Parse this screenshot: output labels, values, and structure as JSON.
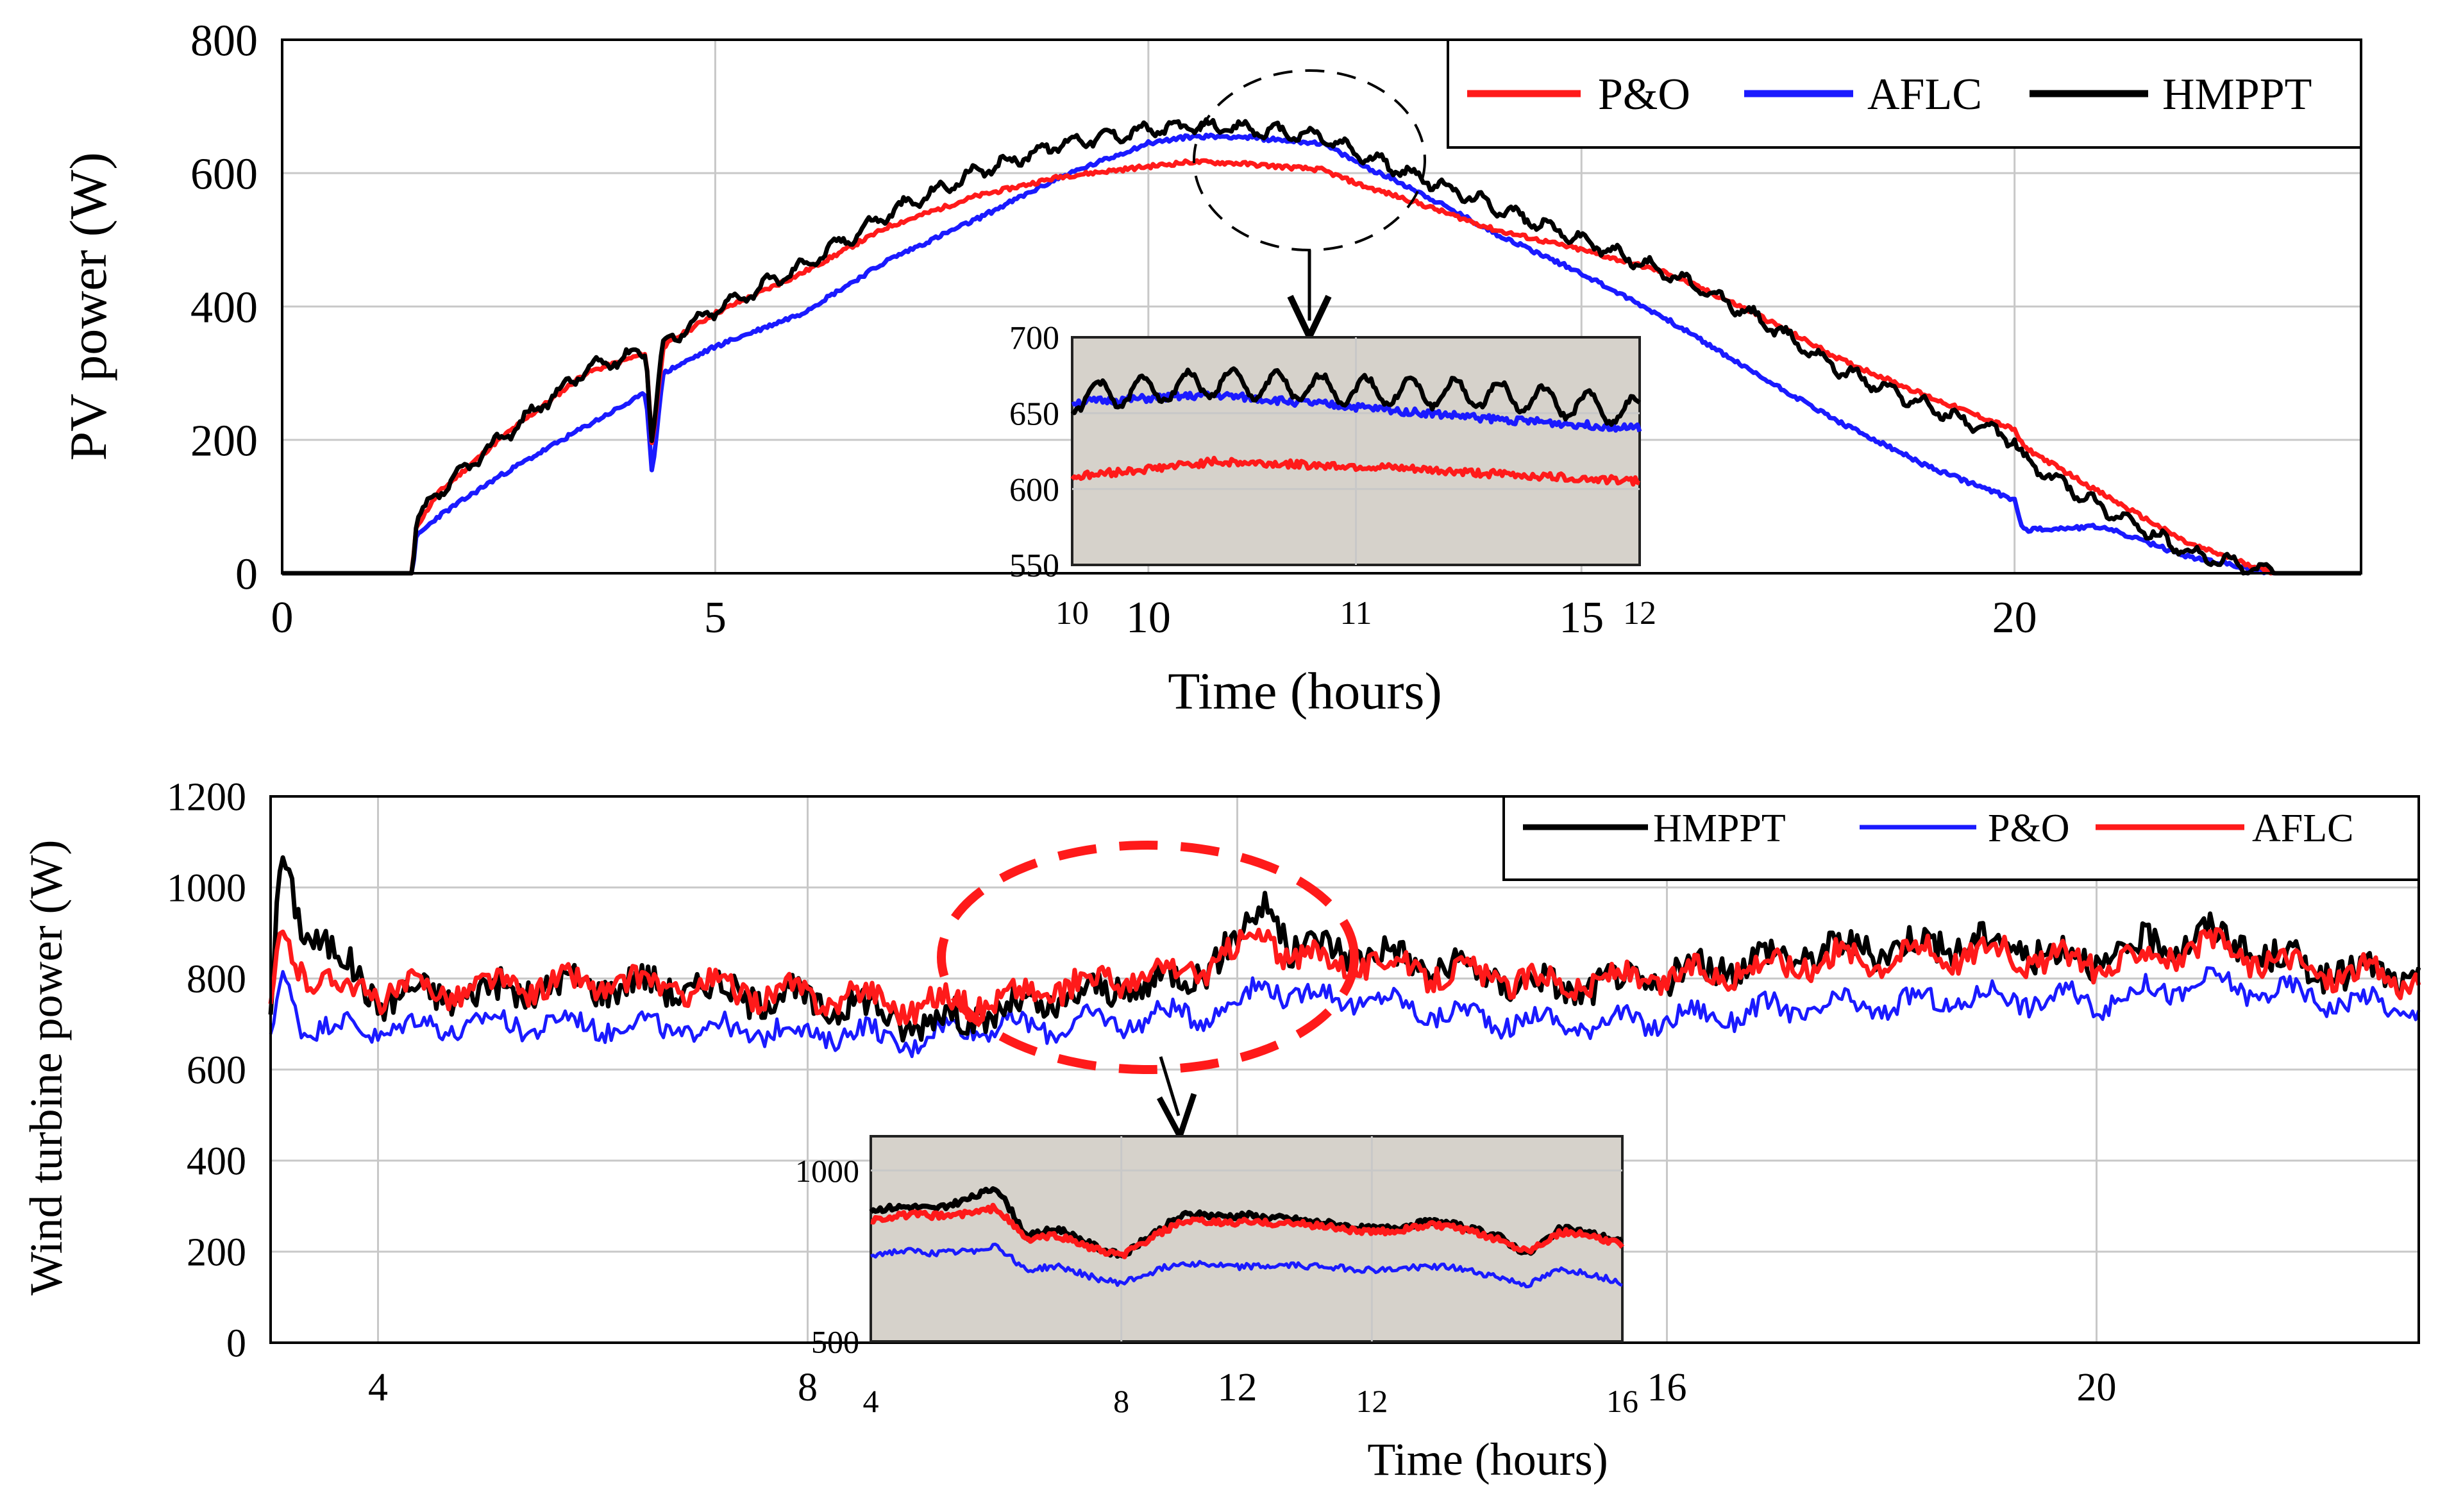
{
  "chart_data": [
    {
      "type": "line",
      "ylabel": "PV power (W)",
      "xlabel": "Time (hours)",
      "xlim": [
        0,
        24
      ],
      "ylim": [
        0,
        800
      ],
      "xticks": [
        "0",
        "5",
        "10",
        "15",
        "20"
      ],
      "yticks": [
        "0",
        "200",
        "400",
        "600",
        "800"
      ],
      "grid": true,
      "legend_position": "top-right",
      "series": [
        {
          "name": "P&O",
          "color": "#ff1a1a",
          "x": [
            0,
            1.5,
            1.55,
            1.8,
            2.5,
            3.5,
            4.2,
            4.27,
            4.4,
            5,
            6,
            7,
            8,
            9,
            10,
            10.5,
            11,
            12,
            12.5,
            13,
            14,
            15,
            16,
            17,
            18,
            19,
            20,
            20.1,
            21,
            22,
            23,
            24
          ],
          "y": [
            0,
            0,
            70,
            120,
            200,
            300,
            330,
            190,
            340,
            390,
            450,
            520,
            565,
            595,
            610,
            617,
            615,
            605,
            580,
            560,
            515,
            485,
            450,
            390,
            320,
            265,
            215,
            190,
            120,
            45,
            0,
            0
          ]
        },
        {
          "name": "AFLC",
          "color": "#1a1aff",
          "x": [
            0,
            1.5,
            1.55,
            1.8,
            2.5,
            3.5,
            4.2,
            4.27,
            4.4,
            5,
            6,
            7,
            8,
            9,
            10,
            10.5,
            11,
            12,
            12.5,
            13,
            14,
            15,
            16,
            17,
            18,
            19,
            20,
            20.1,
            21,
            22,
            23,
            24
          ],
          "y": [
            0,
            0,
            55,
            85,
            145,
            220,
            270,
            150,
            300,
            340,
            390,
            470,
            530,
            595,
            645,
            655,
            655,
            645,
            610,
            580,
            510,
            450,
            380,
            300,
            225,
            160,
            110,
            65,
            70,
            25,
            0,
            0
          ]
        },
        {
          "name": "HMPPT",
          "color": "#000000",
          "x": [
            0,
            1.5,
            1.55,
            1.8,
            2.5,
            3.5,
            4.2,
            4.27,
            4.4,
            5,
            6,
            7,
            8,
            9,
            10,
            10.5,
            11,
            12,
            12.5,
            13,
            14,
            15,
            16,
            17,
            18,
            19,
            20,
            20.1,
            21,
            22,
            23,
            24
          ],
          "y": [
            0,
            0,
            75,
            120,
            200,
            305,
            335,
            200,
            345,
            395,
            460,
            540,
            600,
            645,
            665,
            670,
            668,
            655,
            625,
            600,
            550,
            500,
            450,
            385,
            305,
            250,
            200,
            170,
            100,
            30,
            0,
            0
          ]
        }
      ],
      "inset": {
        "xlim": [
          10,
          12
        ],
        "ylim": [
          550,
          700
        ],
        "xticks": [
          "10",
          "11",
          "12"
        ],
        "yticks": [
          "550",
          "600",
          "650",
          "700"
        ],
        "series": [
          {
            "name": "P&O",
            "x": [
              10,
              10.5,
              11,
              11.5,
              12
            ],
            "y": [
              608,
              618,
              615,
              610,
              605
            ]
          },
          {
            "name": "AFLC",
            "x": [
              10,
              10.5,
              11,
              11.5,
              12
            ],
            "y": [
              657,
              662,
              654,
              646,
              640
            ]
          },
          {
            "name": "HMPPT",
            "x": [
              10,
              10.5,
              11,
              11.5,
              12
            ],
            "y": [
              660,
              670,
              665,
              662,
              650
            ]
          }
        ]
      }
    },
    {
      "type": "line",
      "ylabel": "Wind turbine power (W)",
      "xlabel": "Time (hours)",
      "xlim": [
        3,
        23
      ],
      "ylim": [
        0,
        1200
      ],
      "xticks": [
        "4",
        "8",
        "12",
        "16",
        "20"
      ],
      "yticks": [
        "0",
        "200",
        "400",
        "600",
        "800",
        "1000",
        "1200"
      ],
      "grid": true,
      "legend_position": "top-right",
      "series": [
        {
          "name": "HMPPT",
          "color": "#000000",
          "x": [
            3,
            3.1,
            3.3,
            3.6,
            4,
            5,
            6,
            7,
            8,
            8.5,
            9,
            9.5,
            10,
            10.5,
            11,
            11.5,
            12,
            12.3,
            12.5,
            13,
            14,
            15,
            16,
            17,
            18,
            19,
            20,
            21,
            22,
            23
          ],
          "y": [
            720,
            1080,
            920,
            850,
            760,
            770,
            790,
            780,
            750,
            740,
            700,
            720,
            730,
            760,
            780,
            800,
            880,
            980,
            860,
            870,
            820,
            780,
            800,
            850,
            870,
            880,
            840,
            900,
            820,
            800
          ]
        },
        {
          "name": "P&O",
          "color": "#1a1aff",
          "x": [
            3,
            3.1,
            3.3,
            3.6,
            4,
            5,
            6,
            7,
            8,
            8.5,
            9,
            9.5,
            10,
            10.5,
            11,
            11.5,
            12,
            12.3,
            12.5,
            13,
            14,
            15,
            16,
            17,
            18,
            19,
            20,
            21,
            22,
            23
          ],
          "y": [
            640,
            820,
            700,
            690,
            690,
            700,
            700,
            690,
            680,
            680,
            660,
            700,
            690,
            700,
            710,
            720,
            740,
            800,
            760,
            760,
            720,
            700,
            710,
            730,
            740,
            760,
            750,
            790,
            760,
            730
          ]
        },
        {
          "name": "AFLC",
          "color": "#ff1a1a",
          "x": [
            3,
            3.1,
            3.3,
            3.6,
            4,
            5,
            6,
            7,
            8,
            8.5,
            9,
            9.5,
            10,
            10.5,
            11,
            11.5,
            12,
            12.3,
            12.5,
            13,
            14,
            15,
            16,
            17,
            18,
            19,
            20,
            21,
            22,
            23
          ],
          "y": [
            720,
            900,
            820,
            780,
            770,
            780,
            790,
            780,
            760,
            760,
            740,
            750,
            760,
            790,
            800,
            810,
            860,
            900,
            840,
            840,
            810,
            790,
            800,
            830,
            850,
            860,
            830,
            870,
            820,
            800
          ]
        }
      ],
      "inset": {
        "xlim": [
          4,
          16
        ],
        "ylim": [
          500,
          1100
        ],
        "xticks": [
          "4",
          "8",
          "12",
          "16"
        ],
        "yticks": [
          "500",
          "1000"
        ],
        "series": [
          {
            "name": "HMPPT",
            "x": [
              4,
              5,
              6,
              6.5,
              7,
              8,
              9,
              10,
              11,
              12,
              13,
              14,
              14.5,
              15,
              16
            ],
            "y": [
              890,
              880,
              960,
              800,
              820,
              760,
              860,
              880,
              840,
              840,
              840,
              820,
              760,
              820,
              800
            ]
          },
          {
            "name": "P&O",
            "x": [
              4,
              5,
              6,
              6.5,
              7,
              8,
              9,
              10,
              11,
              12,
              13,
              14,
              14.5,
              15,
              16
            ],
            "y": [
              760,
              750,
              790,
              700,
              710,
              680,
              720,
              730,
              710,
              720,
              710,
              700,
              670,
              700,
              680
            ]
          },
          {
            "name": "AFLC",
            "x": [
              4,
              5,
              6,
              6.5,
              7,
              8,
              9,
              10,
              11,
              12,
              13,
              14,
              14.5,
              15,
              16
            ],
            "y": [
              860,
              860,
              900,
              790,
              800,
              760,
              840,
              860,
              830,
              830,
              830,
              810,
              770,
              810,
              790
            ]
          }
        ]
      }
    }
  ]
}
